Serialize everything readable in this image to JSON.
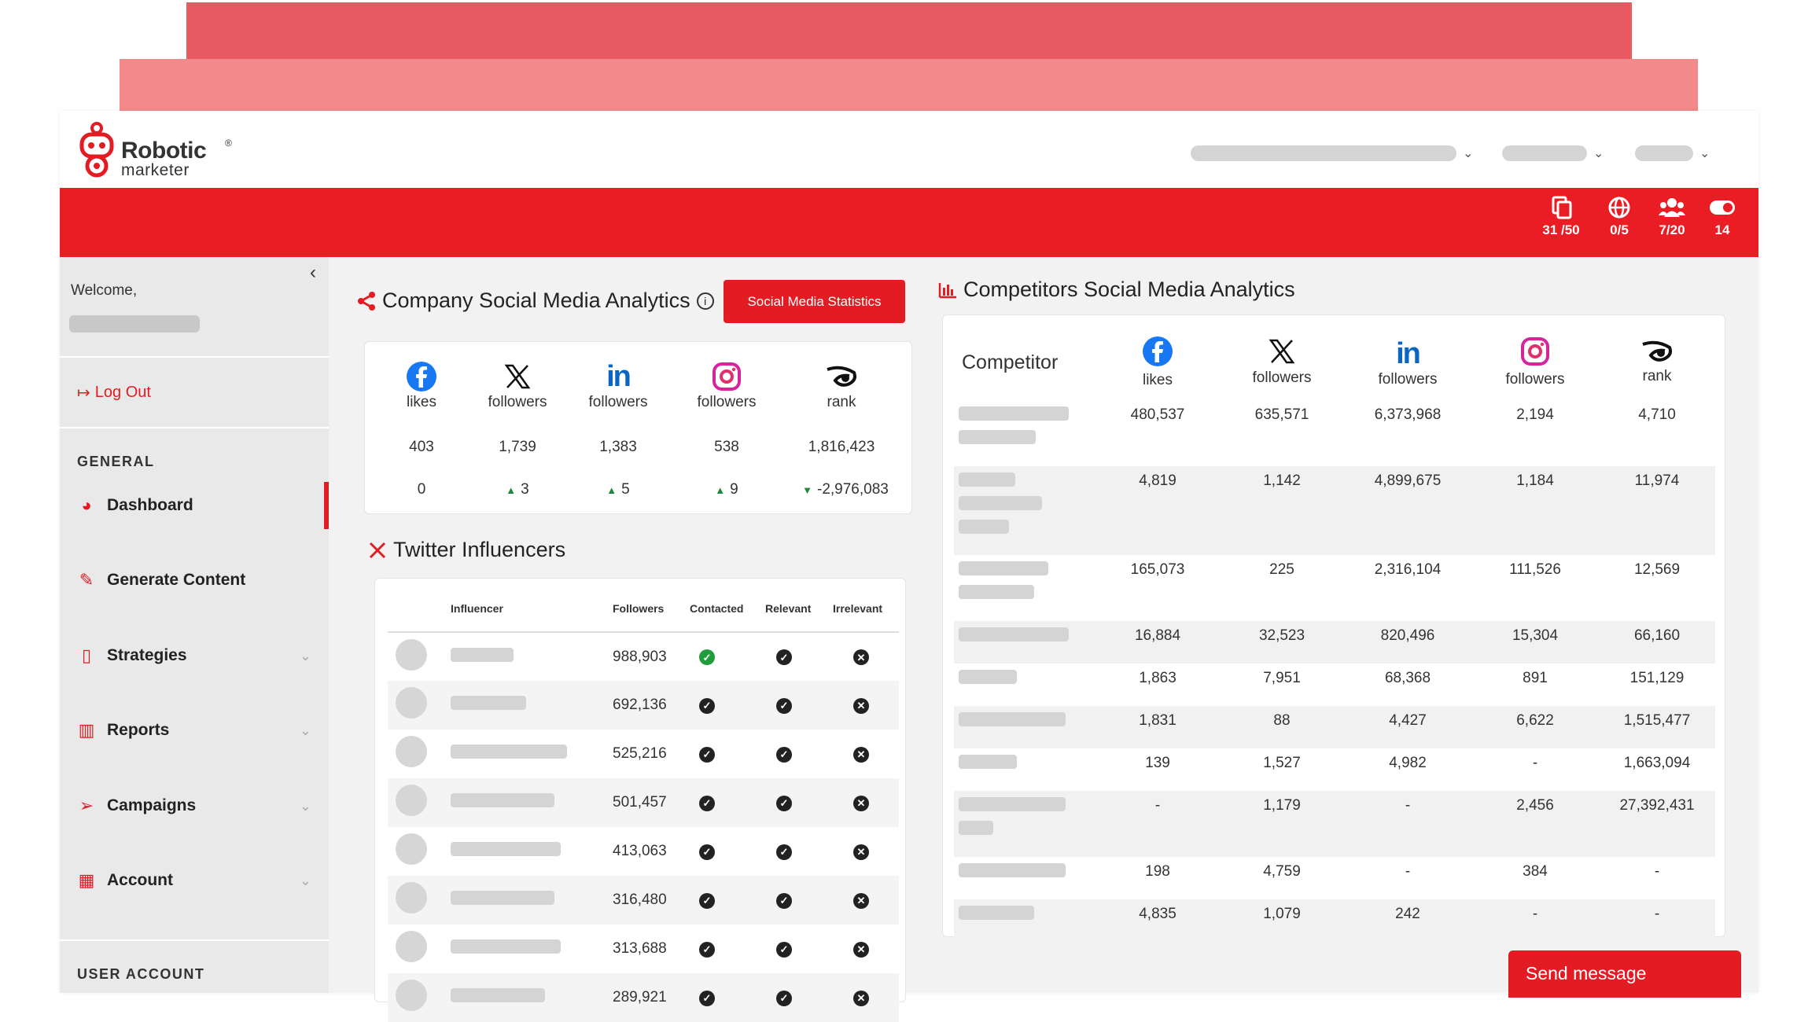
{
  "header": {
    "logo_word1": "Robotic",
    "logo_word2": "marketer",
    "trademark": "®",
    "stats": [
      {
        "icon": "copy-icon",
        "value": "31 /50"
      },
      {
        "icon": "globe-icon",
        "value": "0/5"
      },
      {
        "icon": "users-icon",
        "value": "7/20"
      },
      {
        "icon": "toggle-icon",
        "value": "14"
      }
    ]
  },
  "sidebar": {
    "welcome": "Welcome,",
    "logout": "Log Out",
    "section_general": "GENERAL",
    "items": [
      {
        "label": "Dashboard",
        "icon": "gauge-icon",
        "active": true
      },
      {
        "label": "Generate Content",
        "icon": "pencil-icon"
      },
      {
        "label": "Strategies",
        "icon": "file-icon",
        "dropdown": true
      },
      {
        "label": "Reports",
        "icon": "book-icon",
        "dropdown": true
      },
      {
        "label": "Campaigns",
        "icon": "paper-plane-icon",
        "dropdown": true
      },
      {
        "label": "Account",
        "icon": "building-icon",
        "dropdown": true
      }
    ],
    "section_user": "USER ACCOUNT"
  },
  "company": {
    "title": "Company Social Media Analytics",
    "button": "Social Media Statistics",
    "columns": [
      {
        "network": "facebook-icon",
        "label": "likes",
        "value": "403",
        "change": "0",
        "dir": "none"
      },
      {
        "network": "x-icon",
        "label": "followers",
        "value": "1,739",
        "change": "3",
        "dir": "up"
      },
      {
        "network": "linkedin-icon",
        "label": "followers",
        "value": "1,383",
        "change": "5",
        "dir": "up"
      },
      {
        "network": "instagram-icon",
        "label": "followers",
        "value": "538",
        "change": "9",
        "dir": "up"
      },
      {
        "network": "rank-icon",
        "label": "rank",
        "value": "1,816,423",
        "change": "-2,976,083",
        "dir": "down"
      }
    ]
  },
  "twitter": {
    "title": "Twitter Influencers",
    "headers": {
      "influencer": "Influencer",
      "followers": "Followers",
      "contacted": "Contacted",
      "relevant": "Relevant",
      "irrelevant": "Irrelevant"
    },
    "rows": [
      {
        "followers": "988,903",
        "contacted": true
      },
      {
        "followers": "692,136",
        "contacted": false
      },
      {
        "followers": "525,216",
        "contacted": false
      },
      {
        "followers": "501,457",
        "contacted": false
      },
      {
        "followers": "413,063",
        "contacted": false
      },
      {
        "followers": "316,480",
        "contacted": false
      },
      {
        "followers": "313,688",
        "contacted": false
      },
      {
        "followers": "289,921",
        "contacted": false
      }
    ]
  },
  "competitors": {
    "title": "Competitors Social Media Analytics",
    "col_competitor": "Competitor",
    "columns": [
      {
        "network": "facebook-icon",
        "label": "likes"
      },
      {
        "network": "x-icon",
        "label": "followers"
      },
      {
        "network": "linkedin-icon",
        "label": "followers"
      },
      {
        "network": "instagram-icon",
        "label": "followers"
      },
      {
        "network": "rank-icon",
        "label": "rank"
      }
    ],
    "rows": [
      [
        "480,537",
        "635,571",
        "6,373,968",
        "2,194",
        "4,710"
      ],
      [
        "4,819",
        "1,142",
        "4,899,675",
        "1,184",
        "11,974"
      ],
      [
        "165,073",
        "225",
        "2,316,104",
        "111,526",
        "12,569"
      ],
      [
        "16,884",
        "32,523",
        "820,496",
        "15,304",
        "66,160"
      ],
      [
        "1,863",
        "7,951",
        "68,368",
        "891",
        "151,129"
      ],
      [
        "1,831",
        "88",
        "4,427",
        "6,622",
        "1,515,477"
      ],
      [
        "139",
        "1,527",
        "4,982",
        "-",
        "1,663,094"
      ],
      [
        "-",
        "1,179",
        "-",
        "2,456",
        "27,392,431"
      ],
      [
        "198",
        "4,759",
        "-",
        "384",
        "-"
      ],
      [
        "4,835",
        "1,079",
        "242",
        "-",
        "-"
      ]
    ]
  },
  "send_message": "Send message",
  "colors": {
    "brand_red": "#e31b23",
    "deco_red": "#e85a62",
    "deco_pink": "#f28a8c"
  }
}
